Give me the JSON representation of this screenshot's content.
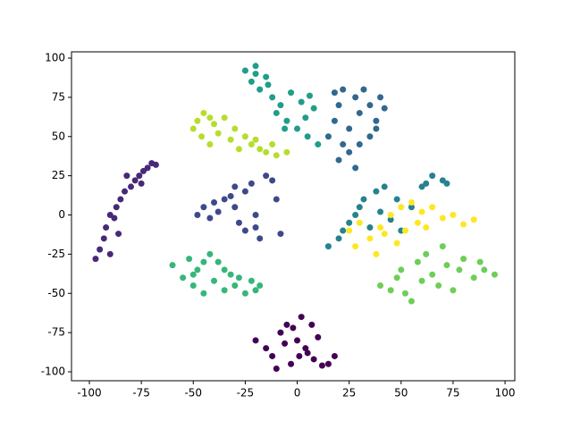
{
  "chart_data": {
    "type": "scatter",
    "xlim": [
      -108.6,
      104.7
    ],
    "ylim": [
      -105.7,
      104
    ],
    "xticks": [
      -100,
      -75,
      -50,
      -25,
      0,
      25,
      50,
      75,
      100
    ],
    "yticks": [
      -100,
      -75,
      -50,
      -25,
      0,
      25,
      50,
      75,
      100
    ],
    "series": [
      {
        "color": "#440154",
        "x": [
          -20,
          -15,
          -12,
          -8,
          -5,
          -3,
          0,
          2,
          5,
          8,
          10,
          12,
          15,
          18,
          -10,
          -2,
          4,
          7,
          -6,
          1
        ],
        "y": [
          -80,
          -85,
          -90,
          -75,
          -70,
          -95,
          -80,
          -65,
          -88,
          -92,
          -78,
          -96,
          -95,
          -90,
          -98,
          -72,
          -85,
          -70,
          -82,
          -90
        ]
      },
      {
        "color": "#482878",
        "x": [
          -97,
          -95,
          -93,
          -90,
          -92,
          -88,
          -87,
          -85,
          -83,
          -80,
          -78,
          -76,
          -74,
          -72,
          -70,
          -86,
          -90,
          -82,
          -75,
          -68
        ],
        "y": [
          -28,
          -22,
          -15,
          -25,
          -8,
          -2,
          5,
          10,
          15,
          18,
          22,
          25,
          28,
          30,
          33,
          -12,
          0,
          25,
          20,
          32
        ]
      },
      {
        "color": "#3e4989",
        "x": [
          -48,
          -45,
          -42,
          -40,
          -38,
          -35,
          -32,
          -30,
          -28,
          -25,
          -22,
          -20,
          -18,
          -15,
          -12,
          -10,
          -25,
          -30,
          -8,
          -20
        ],
        "y": [
          0,
          5,
          -2,
          8,
          2,
          10,
          12,
          5,
          -5,
          15,
          20,
          -8,
          -15,
          25,
          22,
          10,
          -10,
          18,
          -12,
          0
        ]
      },
      {
        "color": "#31688e",
        "x": [
          15,
          18,
          20,
          22,
          25,
          28,
          30,
          32,
          35,
          38,
          40,
          42,
          20,
          25,
          30,
          35,
          18,
          28,
          38,
          22
        ],
        "y": [
          50,
          60,
          70,
          45,
          55,
          75,
          65,
          80,
          70,
          60,
          75,
          68,
          35,
          40,
          45,
          50,
          78,
          30,
          55,
          80
        ]
      },
      {
        "color": "#26828e",
        "x": [
          15,
          20,
          22,
          25,
          28,
          30,
          32,
          35,
          38,
          40,
          42,
          45,
          48,
          50,
          55,
          60,
          62,
          65,
          70,
          72
        ],
        "y": [
          -20,
          -15,
          -10,
          -5,
          0,
          5,
          10,
          -8,
          15,
          2,
          18,
          -3,
          10,
          -10,
          5,
          18,
          20,
          25,
          22,
          20
        ]
      },
      {
        "color": "#1f9e89",
        "x": [
          -25,
          -22,
          -20,
          -18,
          -15,
          -12,
          -10,
          -8,
          -5,
          -3,
          0,
          2,
          5,
          8,
          10,
          -20,
          -6,
          4,
          -14,
          6
        ],
        "y": [
          92,
          85,
          95,
          80,
          88,
          75,
          65,
          70,
          60,
          78,
          55,
          72,
          50,
          68,
          45,
          90,
          55,
          62,
          83,
          76
        ]
      },
      {
        "color": "#35b779",
        "x": [
          -60,
          -55,
          -52,
          -50,
          -48,
          -45,
          -42,
          -40,
          -38,
          -35,
          -32,
          -30,
          -28,
          -25,
          -22,
          -20,
          -18,
          -45,
          -35,
          -50
        ],
        "y": [
          -32,
          -40,
          -28,
          -45,
          -35,
          -50,
          -25,
          -42,
          -30,
          -48,
          -38,
          -45,
          -40,
          -50,
          -42,
          -48,
          -45,
          -30,
          -35,
          -38
        ]
      },
      {
        "color": "#6ece58",
        "x": [
          40,
          45,
          48,
          50,
          52,
          55,
          58,
          60,
          62,
          65,
          68,
          70,
          72,
          75,
          78,
          80,
          85,
          88,
          90,
          95
        ],
        "y": [
          -45,
          -48,
          -40,
          -35,
          -50,
          -55,
          -30,
          -42,
          -25,
          -38,
          -45,
          -20,
          -32,
          -48,
          -35,
          -28,
          -40,
          -30,
          -35,
          -38
        ]
      },
      {
        "color": "#b5de2b",
        "x": [
          -50,
          -48,
          -46,
          -45,
          -42,
          -40,
          -38,
          -35,
          -32,
          -30,
          -28,
          -25,
          -22,
          -20,
          -18,
          -15,
          -12,
          -10,
          -5,
          -42
        ],
        "y": [
          55,
          60,
          50,
          65,
          45,
          58,
          52,
          62,
          48,
          55,
          42,
          50,
          45,
          48,
          42,
          40,
          45,
          38,
          40,
          62
        ]
      },
      {
        "color": "#fde725",
        "x": [
          25,
          28,
          30,
          35,
          38,
          40,
          42,
          45,
          48,
          50,
          52,
          55,
          58,
          60,
          62,
          65,
          70,
          75,
          80,
          85
        ],
        "y": [
          -10,
          -20,
          -5,
          -15,
          -25,
          -8,
          -12,
          0,
          -18,
          5,
          -10,
          8,
          -5,
          2,
          -8,
          5,
          -2,
          0,
          -6,
          -3
        ]
      }
    ]
  }
}
